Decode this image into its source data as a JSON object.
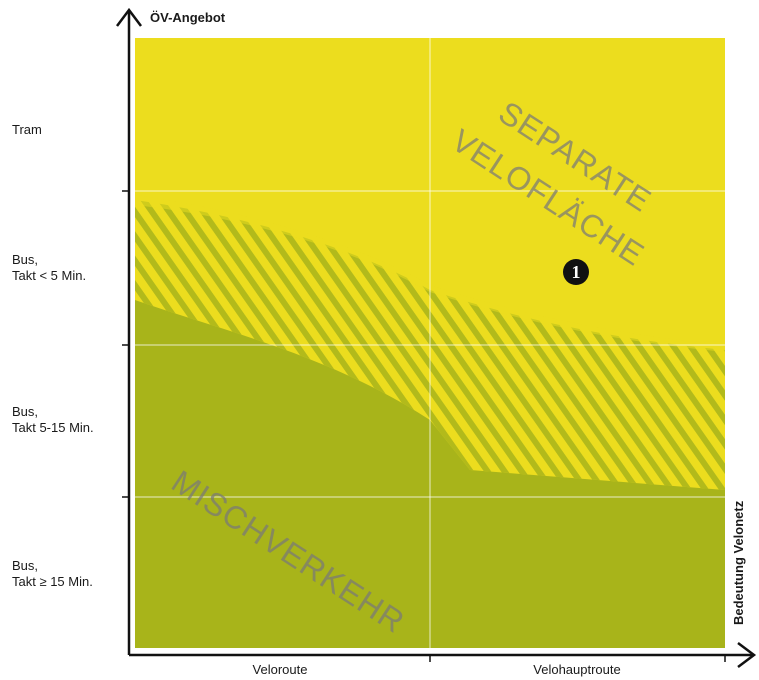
{
  "y_axis": {
    "title": "ÖV-Angebot",
    "categories": [
      {
        "lines": [
          "Tram"
        ]
      },
      {
        "lines": [
          "Bus,",
          "Takt  < 5 Min."
        ]
      },
      {
        "lines": [
          "Bus,",
          "Takt  5-15 Min."
        ]
      },
      {
        "lines": [
          "Bus,",
          "Takt  ≥ 15 Min."
        ]
      }
    ]
  },
  "x_axis": {
    "title": "Bedeutung Velonetz",
    "categories": [
      "Veloroute",
      "Velohauptroute"
    ]
  },
  "zones": {
    "separate_lines": [
      "SEPARATE",
      "VELOFLÄCHE"
    ],
    "mixed": "MISCHVERKEHR",
    "marker": "1"
  },
  "colors": {
    "separate_zone": "#ecdd1e",
    "mixed_zone": "#a8b41a",
    "gridline": "#ffffff",
    "hatch_stripe": "#a8b41a"
  }
}
